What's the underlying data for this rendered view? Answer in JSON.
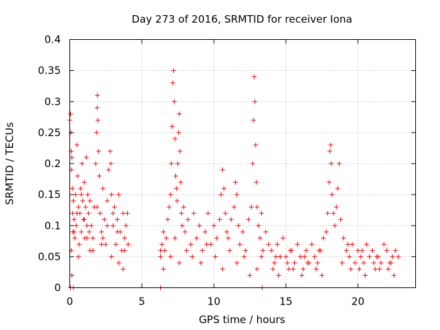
{
  "chart_data": {
    "type": "scatter",
    "title": "Day 273 of 2016, SRMTID for receiver Iona",
    "xlabel": "GPS time / hours",
    "ylabel": "SRMTID / TECUs",
    "xlim": [
      0,
      24
    ],
    "ylim": [
      0,
      0.4
    ],
    "xticks": [
      0,
      5,
      10,
      15,
      20
    ],
    "yticks": [
      0,
      0.05,
      0.1,
      0.15,
      0.2,
      0.25,
      0.3,
      0.35,
      0.4
    ],
    "xtick_labels": [
      "0",
      "5",
      "10",
      "15",
      "20"
    ],
    "ytick_labels": [
      "0",
      "0.05",
      "0.1",
      "0.15",
      "0.2",
      "0.25",
      "0.3",
      "0.35",
      "0.4"
    ],
    "grid": true,
    "marker": "+",
    "color": "#ff0000",
    "series": [
      {
        "name": "SRMTID",
        "x": [
          0.0,
          0.05,
          0.08,
          0.1,
          0.12,
          0.15,
          0.18,
          0.2,
          0.22,
          0.25,
          0.3,
          0.35,
          0.4,
          0.45,
          0.5,
          0.55,
          0.6,
          0.65,
          0.7,
          0.75,
          0.8,
          0.85,
          0.9,
          0.95,
          1.0,
          1.05,
          1.1,
          1.15,
          1.2,
          1.25,
          1.3,
          1.35,
          1.4,
          1.5,
          1.6,
          1.7,
          1.8,
          1.85,
          1.9,
          1.92,
          1.95,
          2.0,
          2.05,
          2.1,
          2.2,
          2.3,
          2.4,
          2.5,
          2.6,
          2.7,
          2.8,
          2.85,
          2.9,
          3.0,
          3.1,
          3.2,
          3.3,
          3.4,
          3.5,
          3.6,
          3.7,
          3.8,
          3.9,
          4.0,
          4.05,
          0.1,
          0.3,
          0.5,
          0.8,
          1.2,
          1.6,
          2.2,
          2.6,
          3.0,
          3.4,
          3.8,
          0.15,
          0.6,
          1.0,
          1.4,
          1.9,
          2.3,
          2.9,
          3.3,
          3.7,
          0.05,
          0.25
        ],
        "y": [
          0.27,
          0.28,
          0.25,
          0.22,
          0.19,
          0.21,
          0.16,
          0.12,
          0.09,
          0.14,
          0.11,
          0.08,
          0.15,
          0.1,
          0.23,
          0.18,
          0.13,
          0.07,
          0.12,
          0.16,
          0.09,
          0.2,
          0.14,
          0.11,
          0.17,
          0.08,
          0.13,
          0.21,
          0.1,
          0.15,
          0.12,
          0.09,
          0.14,
          0.1,
          0.08,
          0.13,
          0.2,
          0.25,
          0.29,
          0.31,
          0.27,
          0.22,
          0.18,
          0.12,
          0.09,
          0.16,
          0.11,
          0.07,
          0.14,
          0.19,
          0.22,
          0.2,
          0.15,
          0.1,
          0.13,
          0.07,
          0.11,
          0.15,
          0.09,
          0.06,
          0.12,
          0.08,
          0.1,
          0.12,
          0.07,
          0.06,
          0.09,
          0.12,
          0.15,
          0.08,
          0.06,
          0.07,
          0.1,
          0.12,
          0.04,
          0.06,
          0.02,
          0.05,
          0.11,
          0.06,
          0.13,
          0.08,
          0.05,
          0.09,
          0.03,
          0.0,
          0.0
        ]
      },
      {
        "name": "SRMTID",
        "x": [
          6.3,
          6.4,
          6.5,
          6.6,
          6.7,
          6.8,
          6.9,
          7.0,
          7.05,
          7.1,
          7.15,
          7.2,
          7.25,
          7.3,
          7.35,
          7.4,
          7.45,
          7.5,
          7.55,
          7.6,
          7.65,
          7.7,
          7.75,
          7.8,
          7.9,
          8.0,
          8.2,
          8.4,
          8.6,
          8.8,
          9.0,
          9.2,
          9.4,
          9.6,
          9.8,
          10.0,
          10.2,
          10.4,
          10.5,
          10.6,
          10.7,
          10.8,
          10.9,
          11.0,
          11.2,
          11.4,
          11.5,
          11.6,
          11.7,
          11.8,
          12.0,
          12.2,
          12.4,
          12.6,
          12.7,
          12.75,
          12.8,
          12.85,
          12.9,
          12.95,
          13.0,
          13.1,
          13.2,
          13.3,
          13.4,
          13.6,
          13.8,
          6.3,
          6.5,
          7.0,
          7.3,
          7.6,
          8.1,
          8.5,
          9.1,
          9.5,
          10.1,
          10.6,
          11.1,
          11.6,
          12.1,
          12.5,
          13.0,
          13.3,
          6.3,
          13.35
        ],
        "y": [
          0.05,
          0.07,
          0.09,
          0.06,
          0.08,
          0.11,
          0.13,
          0.15,
          0.2,
          0.26,
          0.33,
          0.35,
          0.3,
          0.24,
          0.18,
          0.16,
          0.14,
          0.2,
          0.25,
          0.28,
          0.22,
          0.17,
          0.12,
          0.1,
          0.13,
          0.09,
          0.11,
          0.07,
          0.12,
          0.08,
          0.1,
          0.06,
          0.09,
          0.12,
          0.07,
          0.1,
          0.08,
          0.11,
          0.15,
          0.19,
          0.16,
          0.12,
          0.09,
          0.08,
          0.11,
          0.13,
          0.17,
          0.15,
          0.1,
          0.07,
          0.09,
          0.06,
          0.11,
          0.13,
          0.2,
          0.27,
          0.34,
          0.3,
          0.23,
          0.17,
          0.13,
          0.1,
          0.08,
          0.12,
          0.06,
          0.09,
          0.07,
          0.06,
          0.03,
          0.05,
          0.08,
          0.04,
          0.06,
          0.05,
          0.04,
          0.07,
          0.05,
          0.03,
          0.06,
          0.04,
          0.05,
          0.02,
          0.03,
          0.05,
          0.0,
          0.0
        ]
      },
      {
        "name": "SRMTID",
        "x": [
          14.0,
          14.2,
          14.4,
          14.6,
          14.8,
          15.0,
          15.2,
          15.4,
          15.6,
          15.8,
          16.0,
          16.2,
          16.4,
          16.6,
          16.8,
          17.0,
          17.2,
          17.4,
          17.6,
          17.8,
          17.9,
          18.0,
          18.05,
          18.1,
          18.15,
          18.2,
          18.3,
          18.4,
          18.5,
          18.6,
          18.7,
          18.8,
          19.0,
          19.2,
          19.4,
          19.6,
          19.8,
          20.0,
          20.2,
          20.4,
          20.6,
          20.8,
          21.0,
          21.2,
          21.4,
          21.6,
          21.8,
          22.0,
          22.2,
          22.4,
          22.6,
          22.8,
          14.1,
          14.5,
          15.1,
          15.5,
          16.1,
          16.5,
          17.1,
          17.5,
          18.9,
          19.5,
          20.1,
          20.5,
          21.1,
          21.5,
          22.1,
          22.5,
          14.3,
          15.3,
          16.3,
          17.3,
          19.3,
          20.3,
          21.3,
          22.3
        ],
        "y": [
          0.06,
          0.04,
          0.07,
          0.05,
          0.08,
          0.05,
          0.03,
          0.06,
          0.04,
          0.07,
          0.05,
          0.03,
          0.06,
          0.04,
          0.07,
          0.05,
          0.04,
          0.06,
          0.08,
          0.09,
          0.12,
          0.17,
          0.22,
          0.23,
          0.2,
          0.15,
          0.12,
          0.1,
          0.13,
          0.16,
          0.2,
          0.11,
          0.08,
          0.06,
          0.05,
          0.07,
          0.04,
          0.06,
          0.05,
          0.04,
          0.07,
          0.05,
          0.06,
          0.03,
          0.05,
          0.04,
          0.07,
          0.06,
          0.04,
          0.05,
          0.06,
          0.05,
          0.03,
          0.02,
          0.04,
          0.03,
          0.02,
          0.04,
          0.03,
          0.02,
          0.04,
          0.03,
          0.03,
          0.02,
          0.04,
          0.03,
          0.03,
          0.02,
          0.05,
          0.06,
          0.05,
          0.06,
          0.07,
          0.06,
          0.05,
          0.04
        ]
      }
    ]
  }
}
